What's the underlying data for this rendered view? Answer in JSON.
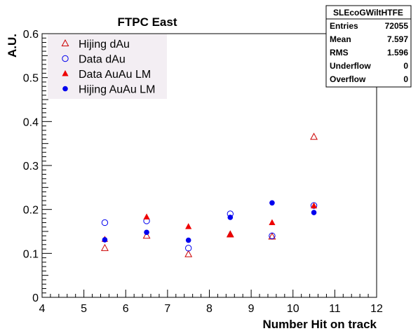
{
  "chart_data": {
    "type": "scatter",
    "title": "FTPC East",
    "xlabel": "Number Hit on track",
    "ylabel": "A.U.",
    "xlim": [
      4,
      12
    ],
    "ylim": [
      0,
      0.6
    ],
    "x_ticks": [
      "4",
      "5",
      "6",
      "7",
      "8",
      "9",
      "10",
      "11",
      "12"
    ],
    "y_ticks": [
      "0",
      "0.1",
      "0.2",
      "0.3",
      "0.4",
      "0.5",
      "0.6"
    ],
    "x_tick_values": [
      4,
      5,
      6,
      7,
      8,
      9,
      10,
      11,
      12
    ],
    "y_tick_values": [
      0,
      0.1,
      0.2,
      0.3,
      0.4,
      0.5,
      0.6
    ],
    "grid": false,
    "legend_position": "top-left",
    "series": [
      {
        "name": "Hijing dAu",
        "marker": "open-triangle",
        "color": "#cc0000",
        "points": [
          [
            5.5,
            0.112
          ],
          [
            6.5,
            0.14
          ],
          [
            7.5,
            0.098
          ],
          [
            8.5,
            0.143
          ],
          [
            9.5,
            0.138
          ],
          [
            10.5,
            0.365
          ]
        ]
      },
      {
        "name": "Data dAu",
        "marker": "open-circle",
        "color": "#0000ee",
        "points": [
          [
            5.5,
            0.17
          ],
          [
            6.5,
            0.174
          ],
          [
            7.5,
            0.112
          ],
          [
            8.5,
            0.19
          ],
          [
            9.5,
            0.14
          ],
          [
            10.5,
            0.209
          ]
        ]
      },
      {
        "name": "Data AuAu LM",
        "marker": "filled-triangle",
        "color": "#ee0000",
        "points": [
          [
            5.5,
            0.132
          ],
          [
            6.5,
            0.183
          ],
          [
            7.5,
            0.161
          ],
          [
            8.5,
            0.142
          ],
          [
            9.5,
            0.17
          ],
          [
            10.5,
            0.208
          ]
        ]
      },
      {
        "name": "Hijing AuAu LM",
        "marker": "filled-circle",
        "color": "#0000ee",
        "points": [
          [
            5.5,
            0.131
          ],
          [
            6.5,
            0.148
          ],
          [
            7.5,
            0.13
          ],
          [
            8.5,
            0.182
          ],
          [
            9.5,
            0.215
          ],
          [
            10.5,
            0.193
          ]
        ]
      }
    ]
  },
  "stats_box": {
    "header": "SLEcoGWiltHTFE",
    "rows": [
      {
        "label": "Entries",
        "value": "72055"
      },
      {
        "label": "Mean",
        "value": "7.597"
      },
      {
        "label": "RMS",
        "value": "1.596"
      },
      {
        "label": "Underflow",
        "value": "0"
      },
      {
        "label": "Overflow",
        "value": "0"
      }
    ]
  }
}
